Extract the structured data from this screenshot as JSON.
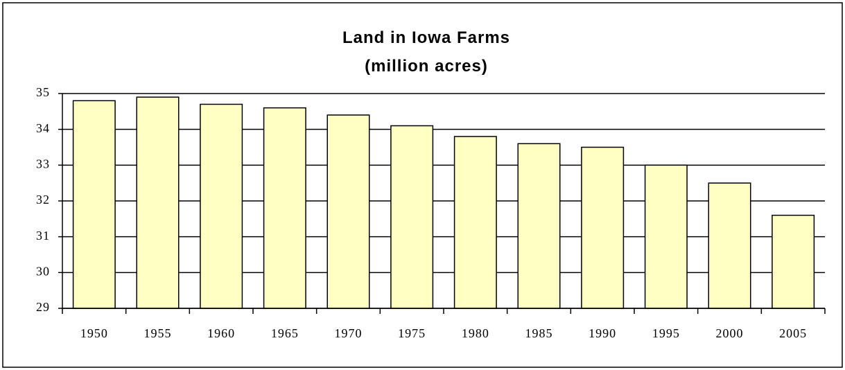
{
  "chart_data": {
    "type": "bar",
    "title": "Land in Iowa Farms",
    "subtitle": "(million acres)",
    "categories": [
      "1950",
      "1955",
      "1960",
      "1965",
      "1970",
      "1975",
      "1980",
      "1985",
      "1990",
      "1995",
      "2000",
      "2005"
    ],
    "values": [
      34.8,
      34.9,
      34.7,
      34.6,
      34.4,
      34.1,
      33.8,
      33.6,
      33.5,
      33.0,
      32.5,
      31.6
    ],
    "color": "#ffffc4",
    "ylim": [
      29,
      35
    ],
    "yticks": [
      29,
      30,
      31,
      32,
      33,
      34,
      35
    ],
    "grid": true
  }
}
